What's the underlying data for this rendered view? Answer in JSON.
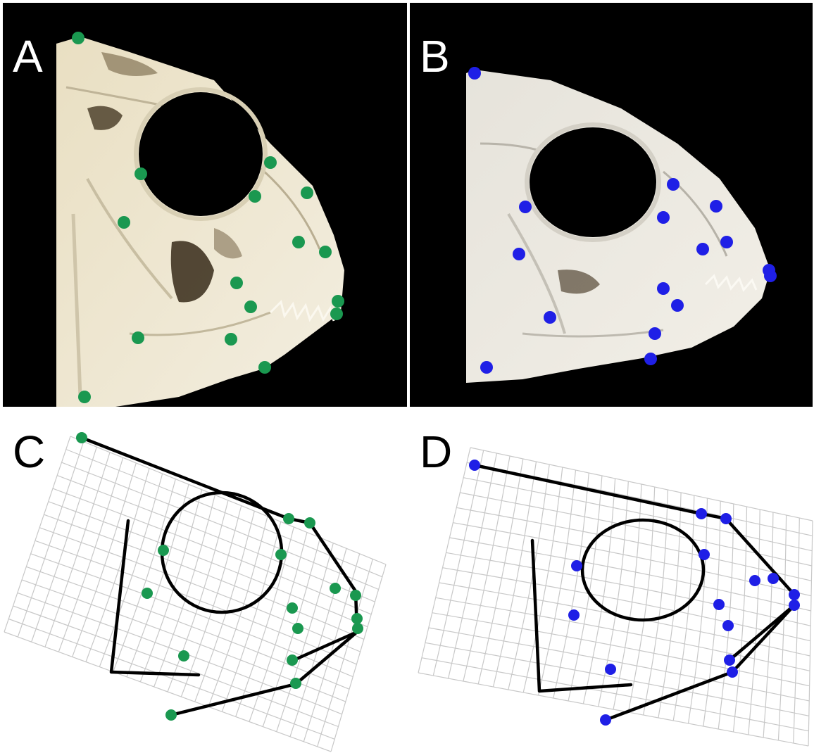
{
  "panels": [
    {
      "id": "A",
      "label": "A",
      "kind": "photo",
      "landmark_color": "#1a9850"
    },
    {
      "id": "B",
      "label": "B",
      "kind": "photo",
      "landmark_color": "#1f1fe6"
    },
    {
      "id": "C",
      "label": "C",
      "kind": "grid",
      "landmark_color": "#1a9850"
    },
    {
      "id": "D",
      "label": "D",
      "kind": "grid",
      "landmark_color": "#1f1fe6"
    }
  ],
  "colors": {
    "green_landmark": "#1a9850",
    "blue_landmark": "#1f1fe6",
    "photo_background": "#000000",
    "bone": "#efe9d8",
    "grid_line": "#c8c8c8",
    "outline": "#000000"
  }
}
